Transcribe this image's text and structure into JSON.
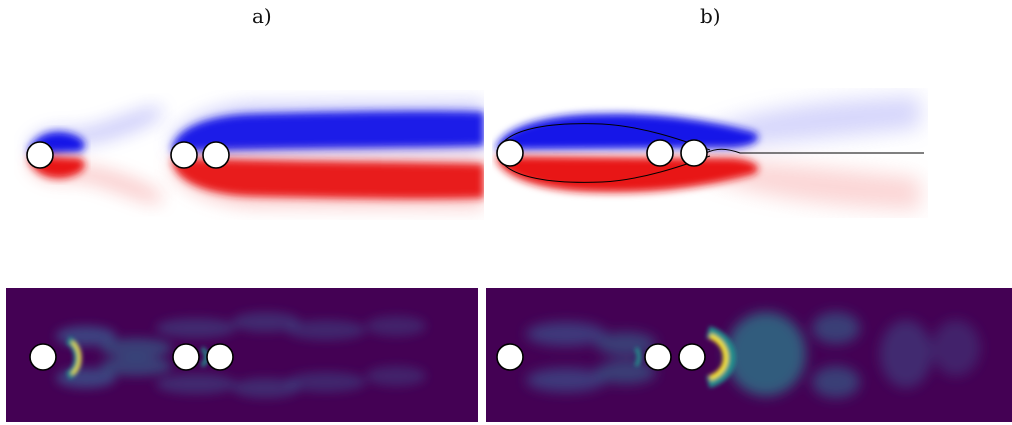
{
  "labels": {
    "a": "a)",
    "b": "b)"
  },
  "panels": {
    "top_left": {
      "content": "vorticity-field",
      "colors": {
        "positive": "#1010e6",
        "negative": "#e61010"
      }
    },
    "top_right": {
      "content": "vorticity-field-with-streamlines",
      "colors": {
        "positive": "#1010e6",
        "negative": "#e61010"
      }
    },
    "bottom_left": {
      "content": "magnitude-field",
      "colors": {
        "background": "#440154",
        "mid": "#21908d",
        "peak": "#fde725"
      }
    },
    "bottom_right": {
      "content": "magnitude-field",
      "colors": {
        "background": "#440154",
        "mid": "#21908d",
        "peak": "#fde725"
      }
    }
  }
}
